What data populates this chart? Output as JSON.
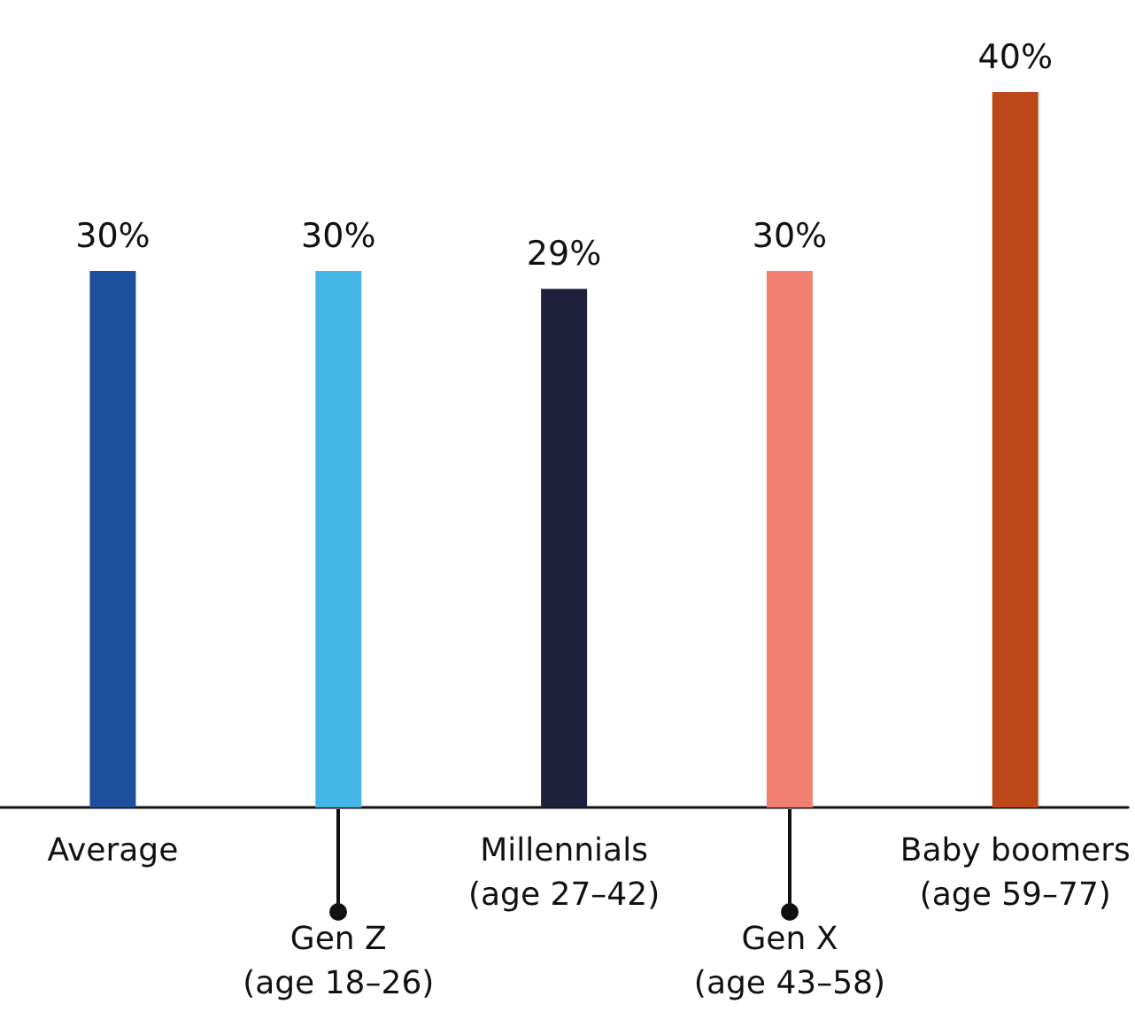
{
  "chart_data": {
    "type": "bar",
    "categories": [
      "Average",
      "Gen Z\n(age 18–26)",
      "Millennials\n(age 27–42)",
      "Gen X\n(age 43–58)",
      "Baby boomers\n(age 59–77)"
    ],
    "values": [
      30,
      30,
      29,
      30,
      40
    ],
    "colors": [
      "#1d4f9c",
      "#45b6e8",
      "#1f203c",
      "#f17f72",
      "#bc4718"
    ],
    "value_labels": [
      "30%",
      "30%",
      "29%",
      "30%",
      "40%"
    ],
    "ylim": [
      0,
      40
    ]
  }
}
